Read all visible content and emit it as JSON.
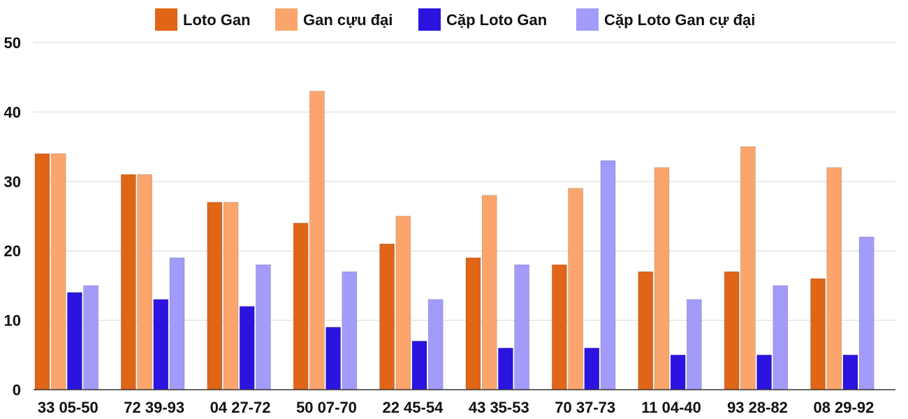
{
  "chart_data": {
    "type": "bar",
    "title": "",
    "xlabel": "",
    "ylabel": "",
    "ylim": [
      0,
      50
    ],
    "yticks": [
      0,
      10,
      20,
      30,
      40,
      50
    ],
    "grid": true,
    "legend_position": "top-center",
    "categories": [
      "33 05-50",
      "72 39-93",
      "04 27-72",
      "50 07-70",
      "22 45-54",
      "43 35-53",
      "70 37-73",
      "11 04-40",
      "93 28-82",
      "08 29-92"
    ],
    "series": [
      {
        "name": "Loto Gan",
        "color": "#e06516",
        "values": [
          34,
          31,
          27,
          24,
          21,
          19,
          18,
          17,
          17,
          16
        ]
      },
      {
        "name": "Gan cựu đại",
        "color": "#fba56d",
        "values": [
          34,
          31,
          27,
          43,
          25,
          28,
          29,
          32,
          35,
          32
        ]
      },
      {
        "name": "Cặp Loto Gan",
        "color": "#2b14e0",
        "values": [
          14,
          13,
          12,
          9,
          7,
          6,
          6,
          5,
          5,
          5
        ]
      },
      {
        "name": "Cặp Loto Gan cự đại",
        "color": "#a39bfa",
        "values": [
          15,
          19,
          18,
          17,
          13,
          18,
          33,
          13,
          15,
          22
        ]
      }
    ]
  }
}
